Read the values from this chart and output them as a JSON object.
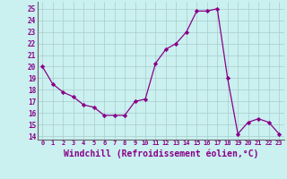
{
  "x": [
    0,
    1,
    2,
    3,
    4,
    5,
    6,
    7,
    8,
    9,
    10,
    11,
    12,
    13,
    14,
    15,
    16,
    17,
    18,
    19,
    20,
    21,
    22,
    23
  ],
  "y": [
    20.0,
    18.5,
    17.8,
    17.4,
    16.7,
    16.5,
    15.8,
    15.8,
    15.8,
    17.0,
    17.2,
    20.3,
    21.5,
    22.0,
    23.0,
    24.8,
    24.8,
    25.0,
    19.0,
    14.2,
    15.2,
    15.5,
    15.2,
    14.2
  ],
  "line_color": "#880088",
  "marker": "D",
  "marker_size": 2.2,
  "bg_color": "#caf0f0",
  "grid_color": "#aacccc",
  "xlabel": "Windchill (Refroidissement éolien,°C)",
  "xlabel_fontsize": 7,
  "ylabel_ticks": [
    14,
    15,
    16,
    17,
    18,
    19,
    20,
    21,
    22,
    23,
    24,
    25
  ],
  "xtick_labels": [
    "0",
    "1",
    "2",
    "3",
    "4",
    "5",
    "6",
    "7",
    "8",
    "9",
    "10",
    "11",
    "12",
    "13",
    "14",
    "15",
    "16",
    "17",
    "18",
    "19",
    "20",
    "21",
    "22",
    "23"
  ],
  "ylim": [
    13.7,
    25.6
  ],
  "xlim": [
    -0.5,
    23.5
  ]
}
